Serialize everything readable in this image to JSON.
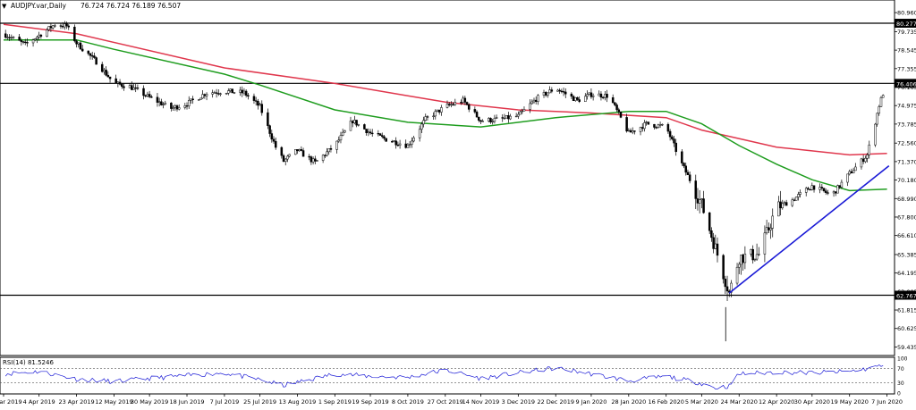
{
  "header": {
    "symbol_label": "AUDJPY.var,Daily",
    "ohlc_label": "76.724 76.724 76.189 76.507",
    "menu_icon": "triangle-down-icon"
  },
  "chart_data": [
    {
      "type": "candlestick",
      "symbol": "AUDJPY.var",
      "timeframe": "Daily",
      "ohlc_text": [
        "76.724",
        "76.724",
        "76.189",
        "76.507"
      ],
      "y_ticks": [
        "80.960",
        "79.735",
        "78.545",
        "77.355",
        "76.165",
        "74.975",
        "73.785",
        "72.560",
        "71.370",
        "70.180",
        "68.990",
        "67.800",
        "66.610",
        "65.385",
        "64.195",
        "63.005",
        "61.815",
        "60.625",
        "59.435"
      ],
      "ylim": [
        59.0,
        81.6
      ],
      "x_labels": [
        "17 Mar 2019",
        "4 Apr 2019",
        "23 Apr 2019",
        "12 May 2019",
        "30 May 2019",
        "18 Jun 2019",
        "7 Jul 2019",
        "25 Jul 2019",
        "13 Aug 2019",
        "1 Sep 2019",
        "19 Sep 2019",
        "8 Oct 2019",
        "27 Oct 2019",
        "14 Nov 2019",
        "3 Dec 2019",
        "22 Dec 2019",
        "9 Jan 2020",
        "28 Jan 2020",
        "16 Feb 2020",
        "5 Mar 2020",
        "24 Mar 2020",
        "12 Apr 2020",
        "30 Apr 2020",
        "19 May 2020",
        "7 Jun 2020"
      ],
      "price_path": [
        [
          "17 Mar 2019",
          79.6
        ],
        [
          "28 Mar 2019",
          78.9
        ],
        [
          "4 Apr 2019",
          79.5
        ],
        [
          "12 Apr 2019",
          80.2
        ],
        [
          "18 Apr 2019",
          80.1
        ],
        [
          "23 Apr 2019",
          79.0
        ],
        [
          "3 May 2019",
          77.8
        ],
        [
          "12 May 2019",
          76.4
        ],
        [
          "20 May 2019",
          76.2
        ],
        [
          "30 May 2019",
          75.5
        ],
        [
          "10 Jun 2019",
          74.8
        ],
        [
          "18 Jun 2019",
          75.1
        ],
        [
          "28 Jun 2019",
          75.8
        ],
        [
          "7 Jul 2019",
          75.9
        ],
        [
          "17 Jul 2019",
          75.8
        ],
        [
          "25 Jul 2019",
          74.9
        ],
        [
          "2 Aug 2019",
          72.3
        ],
        [
          "6 Aug 2019",
          71.4
        ],
        [
          "13 Aug 2019",
          72.1
        ],
        [
          "22 Aug 2019",
          71.3
        ],
        [
          "1 Sep 2019",
          72.4
        ],
        [
          "10 Sep 2019",
          74.0
        ],
        [
          "19 Sep 2019",
          73.2
        ],
        [
          "27 Sep 2019",
          72.8
        ],
        [
          "8 Oct 2019",
          72.4
        ],
        [
          "17 Oct 2019",
          74.1
        ],
        [
          "27 Oct 2019",
          74.9
        ],
        [
          "5 Nov 2019",
          75.3
        ],
        [
          "14 Nov 2019",
          74.0
        ],
        [
          "24 Nov 2019",
          74.1
        ],
        [
          "3 Dec 2019",
          74.3
        ],
        [
          "12 Dec 2019",
          75.4
        ],
        [
          "22 Dec 2019",
          76.1
        ],
        [
          "2 Jan 2020",
          75.3
        ],
        [
          "9 Jan 2020",
          75.7
        ],
        [
          "18 Jan 2020",
          75.6
        ],
        [
          "28 Jan 2020",
          73.2
        ],
        [
          "6 Feb 2020",
          73.8
        ],
        [
          "16 Feb 2020",
          73.6
        ],
        [
          "24 Feb 2020",
          71.2
        ],
        [
          "28 Feb 2020",
          70.2
        ],
        [
          "5 Mar 2020",
          68.6
        ],
        [
          "12 Mar 2020",
          65.8
        ],
        [
          "19 Mar 2020",
          62.9
        ],
        [
          "24 Mar 2020",
          65.2
        ],
        [
          "3 Apr 2020",
          65.4
        ],
        [
          "12 Apr 2020",
          68.4
        ],
        [
          "20 Apr 2020",
          68.9
        ],
        [
          "30 Apr 2020",
          69.8
        ],
        [
          "10 May 2020",
          69.2
        ],
        [
          "19 May 2020",
          70.6
        ],
        [
          "28 May 2020",
          71.8
        ],
        [
          "3 Jun 2020",
          75.0
        ],
        [
          "7 Jun 2020",
          76.5
        ]
      ],
      "ma_green": [
        [
          "17 Mar 2019",
          79.2
        ],
        [
          "23 Apr 2019",
          79.2
        ],
        [
          "12 May 2019",
          78.6
        ],
        [
          "7 Jul 2019",
          77.0
        ],
        [
          "25 Jul 2019",
          76.3
        ],
        [
          "1 Sep 2019",
          74.7
        ],
        [
          "8 Oct 2019",
          73.9
        ],
        [
          "14 Nov 2019",
          73.6
        ],
        [
          "22 Dec 2019",
          74.2
        ],
        [
          "28 Jan 2020",
          74.6
        ],
        [
          "16 Feb 2020",
          74.6
        ],
        [
          "5 Mar 2020",
          73.8
        ],
        [
          "24 Mar 2020",
          72.4
        ],
        [
          "12 Apr 2020",
          71.2
        ],
        [
          "30 Apr 2020",
          70.2
        ],
        [
          "19 May 2020",
          69.5
        ],
        [
          "7 Jun 2020",
          69.6
        ]
      ],
      "ma_red": [
        [
          "17 Mar 2019",
          80.2
        ],
        [
          "23 Apr 2019",
          79.6
        ],
        [
          "7 Jul 2019",
          77.4
        ],
        [
          "1 Sep 2019",
          76.4
        ],
        [
          "8 Oct 2019",
          75.6
        ],
        [
          "27 Oct 2019",
          75.2
        ],
        [
          "3 Dec 2019",
          74.7
        ],
        [
          "9 Jan 2020",
          74.5
        ],
        [
          "16 Feb 2020",
          74.2
        ],
        [
          "5 Mar 2020",
          73.4
        ],
        [
          "12 Apr 2020",
          72.3
        ],
        [
          "19 May 2020",
          71.8
        ],
        [
          "7 Jun 2020",
          71.9
        ]
      ],
      "horizontal_levels": [
        {
          "value": 80.277,
          "label": "80.277"
        },
        {
          "value": 76.406,
          "label": "76.406"
        },
        {
          "value": 62.767,
          "label": "62.767"
        }
      ],
      "trendline": {
        "from": [
          "19 Mar 2020",
          62.9
        ],
        "to": [
          "8 Jun 2020",
          71.1
        ]
      },
      "colors": {
        "up": "#333333",
        "down": "#111111",
        "ma_green": "#1f9d1f",
        "ma_red": "#e0374d",
        "trendline": "#1a1ad6",
        "level": "#000000"
      }
    },
    {
      "type": "line",
      "title": "RSI(14) 81.5246",
      "y_ticks": [
        "100",
        "70",
        "30",
        "0"
      ],
      "ylim": [
        0,
        100
      ],
      "levels": [
        70,
        30
      ],
      "rsi_path": [
        [
          "17 Mar 2019",
          55
        ],
        [
          "4 Apr 2019",
          62
        ],
        [
          "23 Apr 2019",
          40
        ],
        [
          "12 May 2019",
          33
        ],
        [
          "30 May 2019",
          42
        ],
        [
          "18 Jun 2019",
          50
        ],
        [
          "7 Jul 2019",
          58
        ],
        [
          "25 Jul 2019",
          38
        ],
        [
          "6 Aug 2019",
          22
        ],
        [
          "1 Sep 2019",
          55
        ],
        [
          "19 Sep 2019",
          48
        ],
        [
          "8 Oct 2019",
          45
        ],
        [
          "27 Oct 2019",
          66
        ],
        [
          "14 Nov 2019",
          42
        ],
        [
          "3 Dec 2019",
          58
        ],
        [
          "22 Dec 2019",
          72
        ],
        [
          "9 Jan 2020",
          55
        ],
        [
          "28 Jan 2020",
          35
        ],
        [
          "16 Feb 2020",
          48
        ],
        [
          "5 Mar 2020",
          28
        ],
        [
          "12 Mar 2020",
          15
        ],
        [
          "19 Mar 2020",
          20
        ],
        [
          "24 Mar 2020",
          55
        ],
        [
          "12 Apr 2020",
          60
        ],
        [
          "30 Apr 2020",
          58
        ],
        [
          "19 May 2020",
          62
        ],
        [
          "28 May 2020",
          70
        ],
        [
          "7 Jun 2020",
          82
        ]
      ],
      "color": "#1a1ad6"
    }
  ]
}
